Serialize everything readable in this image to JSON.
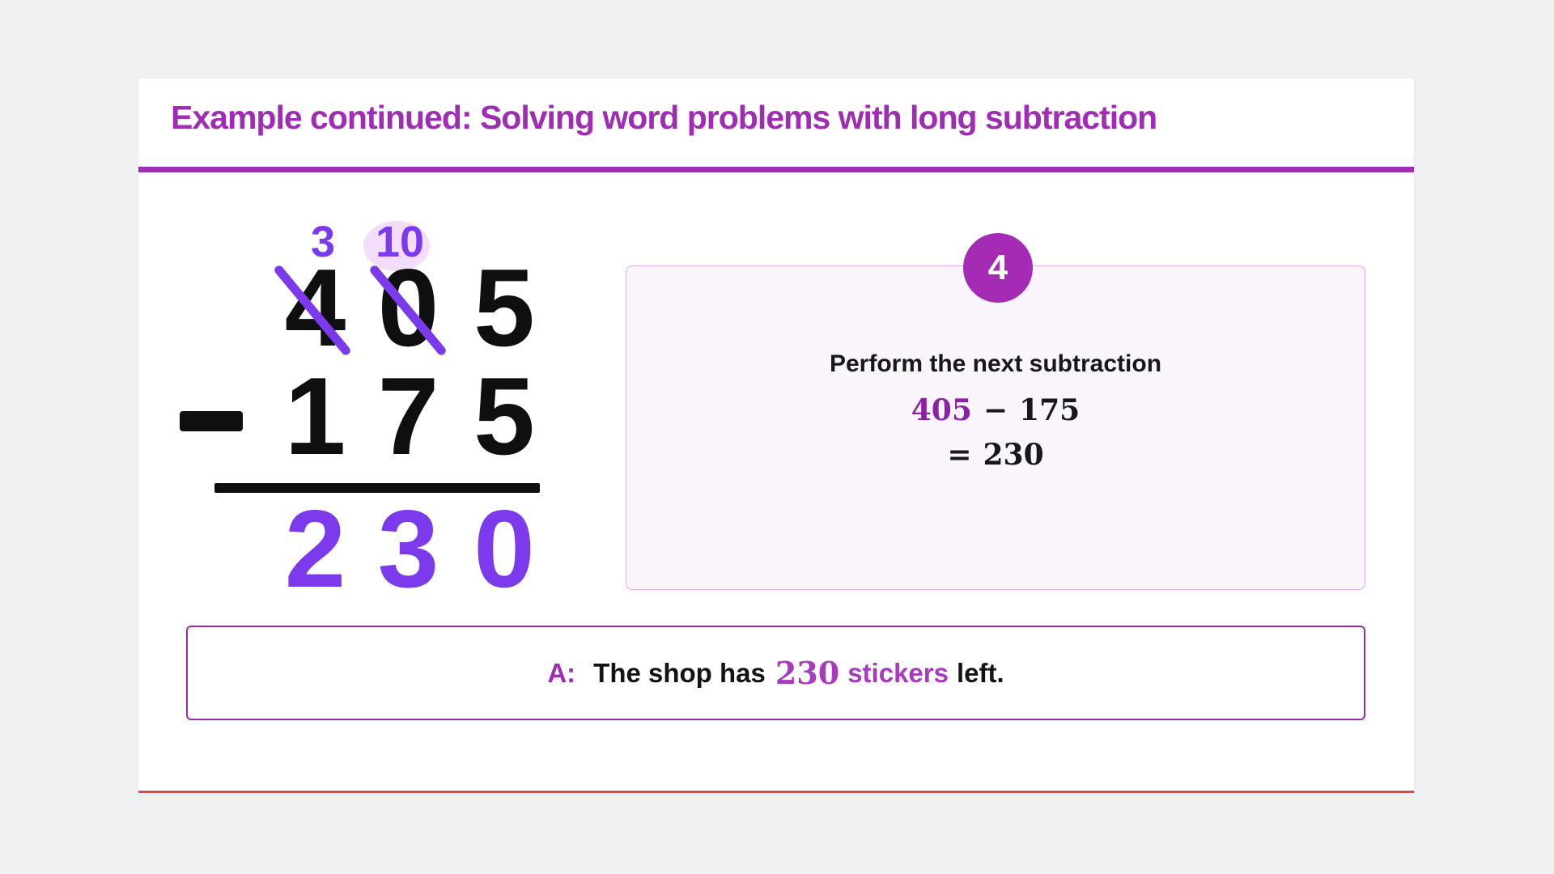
{
  "slide": {
    "title": "Example continued: Solving word problems with long subtraction"
  },
  "worked_problem": {
    "carries": [
      {
        "value": "3",
        "highlighted": false
      },
      {
        "value": "10",
        "highlighted": true
      }
    ],
    "minuend_digits": [
      "4",
      "0",
      "5"
    ],
    "struck_digit_columns": [
      0,
      1
    ],
    "operator": "−",
    "subtrahend_digits": [
      "1",
      "7",
      "5"
    ],
    "result_digits": [
      "2",
      "3",
      "0"
    ]
  },
  "step_card": {
    "step_number": "4",
    "instruction": "Perform the next subtraction",
    "equation": {
      "minuend": "405",
      "operator": "−",
      "subtrahend": "175",
      "equals": "=",
      "result": "230"
    }
  },
  "answer_box": {
    "prefix": "A:",
    "text_before": "The shop has",
    "highlight_number": "230",
    "highlight_word": "stickers",
    "text_after": "left."
  },
  "colors": {
    "accent_magenta": "#9f2db4",
    "accent_violet": "#7c3aed",
    "math_highlight_purple": "#8d21a5",
    "answer_highlight_purple": "#a73abd",
    "carry_highlight_bg": "#f3ddfb",
    "card_bottom_line_red": "#e0443a",
    "step_card_bg": "#faf4fc",
    "step_card_border": "#dcade9"
  }
}
